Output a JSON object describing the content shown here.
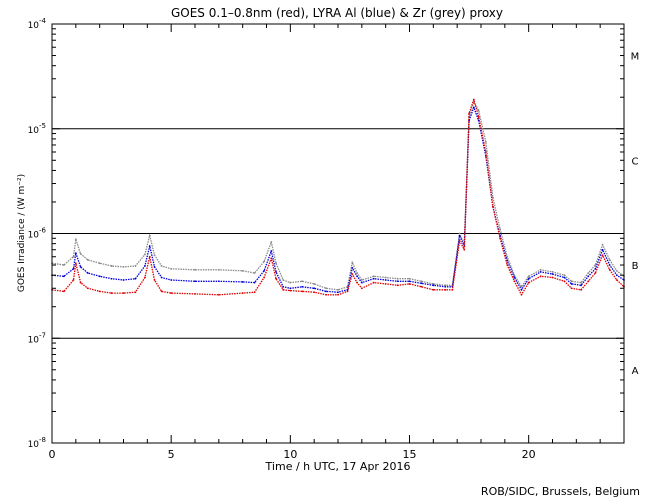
{
  "chart_data": {
    "type": "line",
    "title": "GOES 0.1–0.8nm (red), LYRA Al (blue) & Zr (grey) proxy",
    "xlabel": "Time / h UTC, 17 Apr 2016",
    "ylabel": "GOES Irradiance / (W m⁻²)",
    "footer": "ROB/SIDC, Brussels, Belgium",
    "xlim": [
      0,
      24
    ],
    "ylim": [
      1e-08,
      0.0001
    ],
    "yscale": "log",
    "x_ticks": [
      0,
      5,
      10,
      15,
      20
    ],
    "x_tick_labels": [
      "0",
      "5",
      "10",
      "15",
      "20"
    ],
    "y_ticks": [
      {
        "value": 0.0001,
        "base": "10",
        "exp": "-4"
      },
      {
        "value": 1e-05,
        "base": "10",
        "exp": "-5"
      },
      {
        "value": 1e-06,
        "base": "10",
        "exp": "-6"
      },
      {
        "value": 1e-07,
        "base": "10",
        "exp": "-7"
      },
      {
        "value": 1e-08,
        "base": "10",
        "exp": "-8"
      }
    ],
    "class_lines": [
      1e-05,
      1e-06,
      1e-07
    ],
    "class_labels": [
      {
        "label": "M",
        "value": 5e-05
      },
      {
        "label": "C",
        "value": 5e-06
      },
      {
        "label": "B",
        "value": 5e-07
      },
      {
        "label": "A",
        "value": 5e-08
      }
    ],
    "series": [
      {
        "color": "#e00000",
        "x": [
          0,
          0.5,
          0.9,
          1.0,
          1.2,
          1.5,
          2.0,
          2.5,
          3.0,
          3.5,
          3.9,
          4.1,
          4.3,
          4.6,
          5.0,
          6.0,
          7.0,
          8.0,
          8.5,
          8.9,
          9.2,
          9.4,
          9.7,
          10.0,
          10.5,
          11.0,
          11.5,
          12.0,
          12.4,
          12.6,
          12.8,
          13.0,
          13.5,
          14.0,
          14.5,
          15.0,
          15.5,
          16.0,
          16.5,
          16.8,
          17.1,
          17.3,
          17.5,
          17.7,
          17.9,
          18.2,
          18.5,
          18.8,
          19.1,
          19.4,
          19.7,
          20.0,
          20.5,
          21.0,
          21.5,
          21.8,
          22.2,
          22.5,
          22.8,
          23.1,
          23.4,
          23.7,
          24.0
        ],
        "y": [
          2.9e-07,
          2.8e-07,
          3.6e-07,
          5.2e-07,
          3.4e-07,
          3e-07,
          2.8e-07,
          2.7e-07,
          2.7e-07,
          2.75e-07,
          3.8e-07,
          6e-07,
          3.6e-07,
          2.8e-07,
          2.7e-07,
          2.65e-07,
          2.6e-07,
          2.7e-07,
          2.75e-07,
          3.8e-07,
          5.8e-07,
          3.7e-07,
          2.9e-07,
          2.85e-07,
          2.8e-07,
          2.75e-07,
          2.6e-07,
          2.6e-07,
          2.8e-07,
          4.1e-07,
          3.4e-07,
          3e-07,
          3.4e-07,
          3.3e-07,
          3.2e-07,
          3.3e-07,
          3.1e-07,
          2.9e-07,
          2.9e-07,
          2.9e-07,
          8.5e-07,
          7e-07,
          1.4e-05,
          1.9e-05,
          1.3e-05,
          6e-06,
          1.8e-06,
          9e-07,
          5e-07,
          3.5e-07,
          2.6e-07,
          3.4e-07,
          3.9e-07,
          3.8e-07,
          3.5e-07,
          3e-07,
          2.9e-07,
          3.5e-07,
          4.2e-07,
          6.2e-07,
          4.5e-07,
          3.6e-07,
          3.1e-07
        ]
      },
      {
        "color": "#0000dd",
        "x": [
          0,
          0.5,
          0.9,
          1.0,
          1.2,
          1.5,
          2.0,
          2.5,
          3.0,
          3.5,
          3.9,
          4.1,
          4.3,
          4.6,
          5.0,
          6.0,
          7.0,
          8.0,
          8.5,
          8.9,
          9.2,
          9.4,
          9.7,
          10.0,
          10.5,
          11.0,
          11.5,
          12.0,
          12.4,
          12.6,
          12.8,
          13.0,
          13.5,
          14.0,
          14.5,
          15.0,
          15.5,
          16.0,
          16.5,
          16.8,
          17.1,
          17.3,
          17.5,
          17.7,
          17.9,
          18.2,
          18.5,
          18.8,
          19.1,
          19.4,
          19.7,
          20.0,
          20.5,
          21.0,
          21.5,
          21.8,
          22.2,
          22.5,
          22.8,
          23.1,
          23.4,
          23.7,
          24.0
        ],
        "y": [
          4e-07,
          3.9e-07,
          4.6e-07,
          6.5e-07,
          4.8e-07,
          4.2e-07,
          3.9e-07,
          3.7e-07,
          3.6e-07,
          3.7e-07,
          4.9e-07,
          7.6e-07,
          4.8e-07,
          3.8e-07,
          3.6e-07,
          3.5e-07,
          3.5e-07,
          3.45e-07,
          3.4e-07,
          4.4e-07,
          6.8e-07,
          4.3e-07,
          3.1e-07,
          3e-07,
          3.1e-07,
          3e-07,
          2.8e-07,
          2.75e-07,
          2.9e-07,
          4.7e-07,
          3.9e-07,
          3.4e-07,
          3.7e-07,
          3.6e-07,
          3.5e-07,
          3.5e-07,
          3.35e-07,
          3.2e-07,
          3.1e-07,
          3.1e-07,
          9.5e-07,
          7.5e-07,
          1.2e-05,
          1.6e-05,
          1.2e-05,
          5.5e-06,
          1.8e-06,
          9.5e-07,
          5.5e-07,
          3.8e-07,
          2.9e-07,
          3.7e-07,
          4.3e-07,
          4.1e-07,
          3.8e-07,
          3.3e-07,
          3.2e-07,
          3.9e-07,
          4.6e-07,
          7e-07,
          5e-07,
          4e-07,
          3.6e-07
        ]
      },
      {
        "color": "#888888",
        "x": [
          0,
          0.5,
          0.9,
          1.0,
          1.2,
          1.5,
          2.0,
          2.5,
          3.0,
          3.5,
          3.9,
          4.1,
          4.3,
          4.6,
          5.0,
          6.0,
          7.0,
          8.0,
          8.5,
          8.9,
          9.2,
          9.4,
          9.7,
          10.0,
          10.5,
          11.0,
          11.5,
          12.0,
          12.4,
          12.6,
          12.8,
          13.0,
          13.5,
          14.0,
          14.5,
          15.0,
          15.5,
          16.0,
          16.5,
          16.8,
          17.1,
          17.3,
          17.5,
          17.7,
          17.9,
          18.2,
          18.5,
          18.8,
          19.1,
          19.4,
          19.7,
          20.0,
          20.5,
          21.0,
          21.5,
          21.8,
          22.2,
          22.5,
          22.8,
          23.1,
          23.4,
          23.7,
          24.0
        ],
        "y": [
          5.2e-07,
          5e-07,
          6e-07,
          8.8e-07,
          6.4e-07,
          5.6e-07,
          5.2e-07,
          4.9e-07,
          4.8e-07,
          4.9e-07,
          6.3e-07,
          9.6e-07,
          6.2e-07,
          4.9e-07,
          4.6e-07,
          4.5e-07,
          4.5e-07,
          4.4e-07,
          4.2e-07,
          5.4e-07,
          8.3e-07,
          5.2e-07,
          3.6e-07,
          3.4e-07,
          3.5e-07,
          3.3e-07,
          3e-07,
          2.9e-07,
          3.1e-07,
          5.3e-07,
          4.2e-07,
          3.6e-07,
          3.9e-07,
          3.8e-07,
          3.7e-07,
          3.7e-07,
          3.5e-07,
          3.3e-07,
          3.2e-07,
          3.2e-07,
          1e-06,
          8e-07,
          1.3e-05,
          1.8e-05,
          1.5e-05,
          7.5e-06,
          2.2e-06,
          1.1e-06,
          6e-07,
          4e-07,
          3.1e-07,
          3.9e-07,
          4.5e-07,
          4.3e-07,
          4e-07,
          3.5e-07,
          3.4e-07,
          4.2e-07,
          5e-07,
          7.8e-07,
          5.6e-07,
          4.4e-07,
          3.9e-07
        ]
      }
    ]
  }
}
